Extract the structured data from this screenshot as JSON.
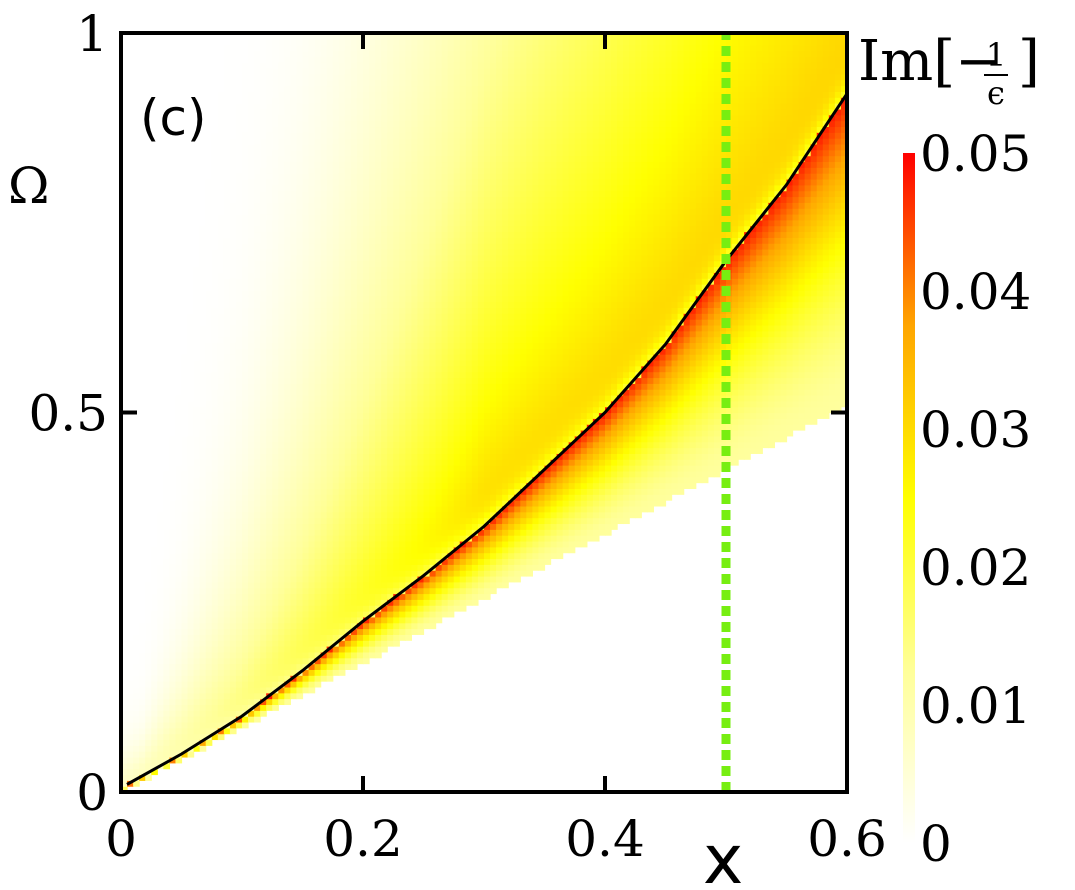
{
  "chart_data": {
    "type": "heatmap",
    "panel_label": "(c)",
    "xlabel": "x",
    "ylabel": "Ω",
    "xlim": [
      0,
      0.6
    ],
    "ylim": [
      0,
      1
    ],
    "x_ticks": [
      {
        "value": 0,
        "label": "0"
      },
      {
        "value": 0.2,
        "label": "0.2"
      },
      {
        "value": 0.4,
        "label": "0.4"
      },
      {
        "value": 0.6,
        "label": "0.6"
      }
    ],
    "y_ticks": [
      {
        "value": 0,
        "label": "0"
      },
      {
        "value": 0.5,
        "label": "0.5"
      },
      {
        "value": 1,
        "label": "1"
      }
    ],
    "colorbar": {
      "title_prefix": "Im[−",
      "title_num": "1",
      "title_den": "ϵ",
      "title_suffix": "]",
      "range": [
        0,
        0.05
      ],
      "ticks": [
        {
          "value": 0,
          "label": "0"
        },
        {
          "value": 0.01,
          "label": "0.01"
        },
        {
          "value": 0.02,
          "label": "0.02"
        },
        {
          "value": 0.03,
          "label": "0.03"
        },
        {
          "value": 0.04,
          "label": "0.04"
        },
        {
          "value": 0.05,
          "label": "0.05"
        }
      ],
      "colormap": [
        "#ffffff",
        "#ffff99",
        "#ffff00",
        "#ffa500",
        "#ff0000"
      ]
    },
    "lower_continuum_edge": {
      "x": [
        0,
        0.1,
        0.2,
        0.3,
        0.4,
        0.5,
        0.6
      ],
      "y": [
        0,
        0.085,
        0.17,
        0.255,
        0.34,
        0.425,
        0.51
      ]
    },
    "plasmon_curve": {
      "color": "#000000",
      "x": [
        0.005,
        0.05,
        0.1,
        0.15,
        0.2,
        0.25,
        0.3,
        0.35,
        0.4,
        0.45,
        0.5,
        0.55,
        0.6
      ],
      "y": [
        0.01,
        0.05,
        0.1,
        0.16,
        0.225,
        0.285,
        0.35,
        0.425,
        0.5,
        0.59,
        0.7,
        0.8,
        0.92
      ]
    },
    "marker_line": {
      "x": 0.5,
      "color": "#77ee11",
      "style": "dotted"
    },
    "grid": false
  }
}
